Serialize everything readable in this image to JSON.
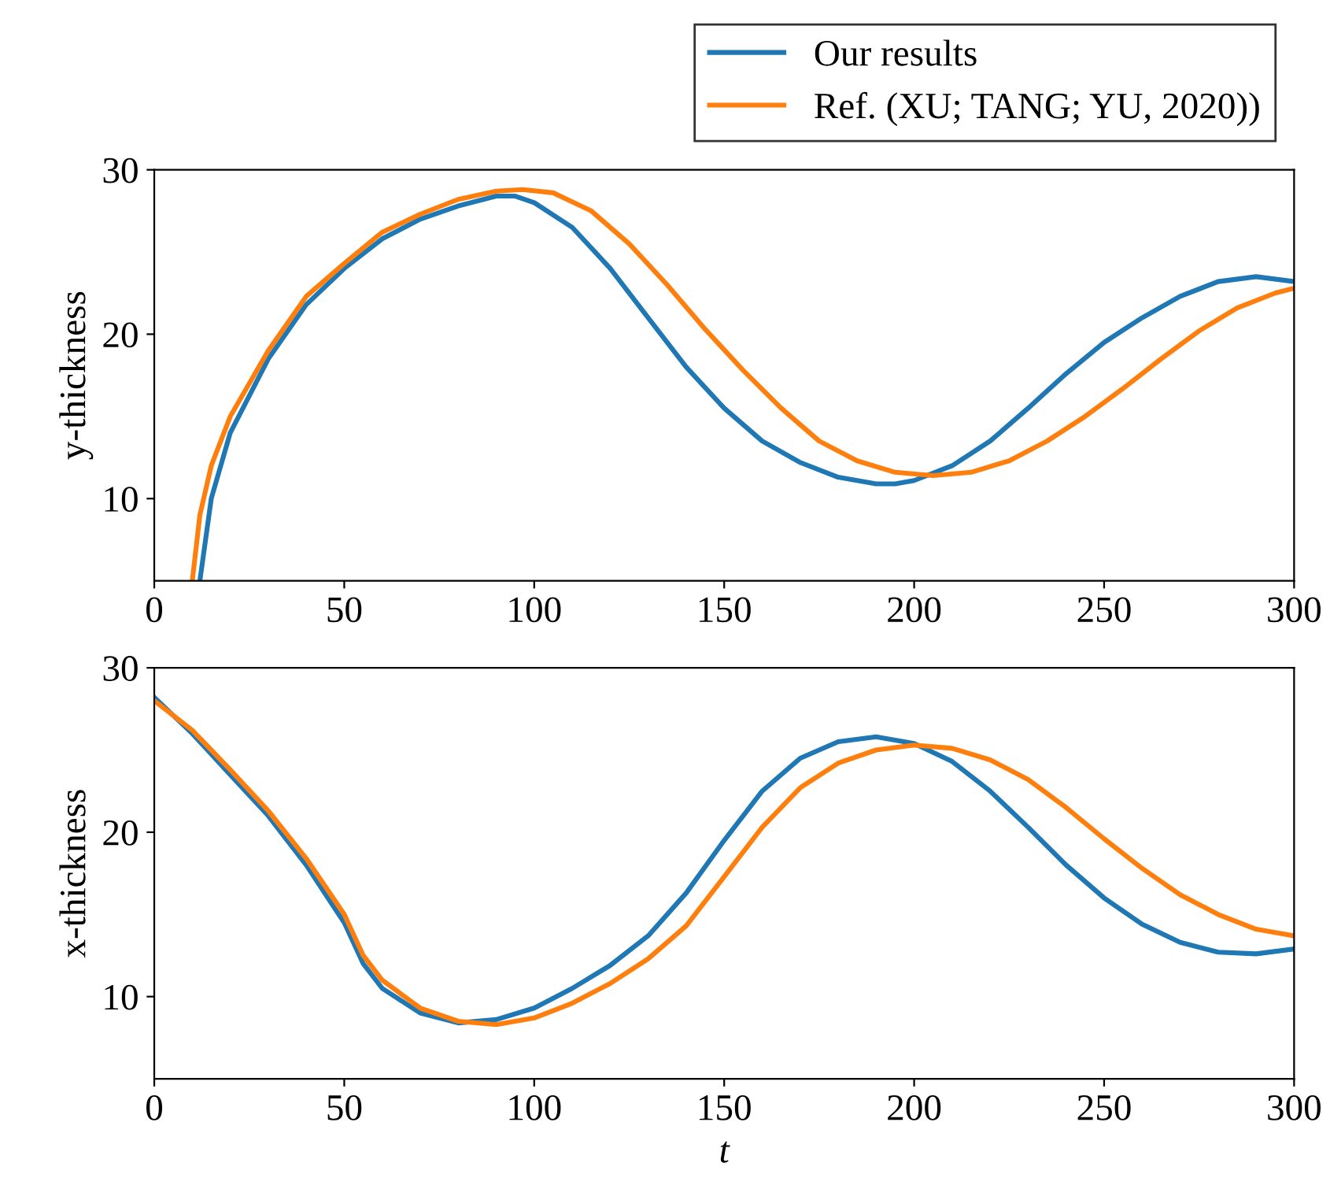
{
  "chart_data": [
    {
      "type": "line",
      "ylabel": "y-thickness",
      "xlim": [
        0,
        300
      ],
      "ylim": [
        5,
        30
      ],
      "xticks": [
        0,
        50,
        100,
        150,
        200,
        250,
        300
      ],
      "yticks": [
        10,
        20,
        30
      ],
      "grid": false,
      "legend": "top right",
      "series": [
        {
          "name": "Our results",
          "color": "#1f77b4",
          "x": [
            12,
            15,
            20,
            30,
            40,
            50,
            60,
            70,
            80,
            90,
            95,
            100,
            110,
            120,
            130,
            140,
            150,
            160,
            170,
            180,
            190,
            195,
            200,
            210,
            220,
            230,
            240,
            250,
            260,
            270,
            280,
            290,
            300
          ],
          "values": [
            5,
            10,
            14,
            18.5,
            21.8,
            24,
            25.8,
            27,
            27.8,
            28.4,
            28.4,
            28,
            26.5,
            24,
            21,
            18,
            15.5,
            13.5,
            12.2,
            11.3,
            10.9,
            10.9,
            11.1,
            12,
            13.5,
            15.5,
            17.6,
            19.5,
            21,
            22.3,
            23.2,
            23.5,
            23.2
          ]
        },
        {
          "name": "Ref. (XU; TANG; YU, 2020))",
          "color": "#ff7f0e",
          "x": [
            10,
            12,
            15,
            20,
            30,
            40,
            50,
            60,
            70,
            80,
            90,
            97,
            105,
            115,
            125,
            135,
            145,
            155,
            165,
            175,
            185,
            195,
            205,
            215,
            225,
            235,
            245,
            255,
            265,
            275,
            285,
            295,
            300
          ],
          "values": [
            5,
            9,
            12,
            15,
            19,
            22.3,
            24.3,
            26.2,
            27.3,
            28.2,
            28.7,
            28.8,
            28.6,
            27.5,
            25.5,
            23,
            20.3,
            17.8,
            15.5,
            13.5,
            12.3,
            11.6,
            11.4,
            11.6,
            12.3,
            13.5,
            15,
            16.7,
            18.5,
            20.2,
            21.6,
            22.5,
            22.8
          ]
        }
      ]
    },
    {
      "type": "line",
      "xlabel": "t",
      "ylabel": "x-thickness",
      "xlim": [
        0,
        300
      ],
      "ylim": [
        5,
        30
      ],
      "xticks": [
        0,
        50,
        100,
        150,
        200,
        250,
        300
      ],
      "yticks": [
        10,
        20,
        30
      ],
      "grid": false,
      "series": [
        {
          "color": "#1f77b4",
          "x": [
            0,
            10,
            20,
            30,
            40,
            50,
            55,
            60,
            70,
            80,
            90,
            100,
            110,
            120,
            130,
            140,
            150,
            160,
            170,
            180,
            190,
            200,
            210,
            220,
            230,
            240,
            250,
            260,
            270,
            280,
            290,
            300
          ],
          "values": [
            28.2,
            26,
            23.5,
            21,
            18,
            14.5,
            12,
            10.5,
            9,
            8.4,
            8.6,
            9.3,
            10.5,
            11.9,
            13.7,
            16.3,
            19.5,
            22.5,
            24.5,
            25.5,
            25.8,
            25.4,
            24.3,
            22.5,
            20.3,
            18,
            16,
            14.4,
            13.3,
            12.7,
            12.6,
            12.9
          ]
        },
        {
          "color": "#ff7f0e",
          "x": [
            0,
            10,
            20,
            30,
            40,
            50,
            55,
            60,
            70,
            80,
            90,
            100,
            110,
            120,
            130,
            140,
            150,
            160,
            170,
            180,
            190,
            200,
            210,
            220,
            230,
            240,
            250,
            260,
            270,
            280,
            290,
            300
          ],
          "values": [
            28,
            26.2,
            23.8,
            21.3,
            18.4,
            15,
            12.5,
            11,
            9.3,
            8.5,
            8.3,
            8.7,
            9.6,
            10.8,
            12.3,
            14.3,
            17.3,
            20.3,
            22.7,
            24.2,
            25,
            25.3,
            25.1,
            24.4,
            23.2,
            21.5,
            19.6,
            17.8,
            16.2,
            15,
            14.1,
            13.7
          ]
        }
      ]
    }
  ]
}
